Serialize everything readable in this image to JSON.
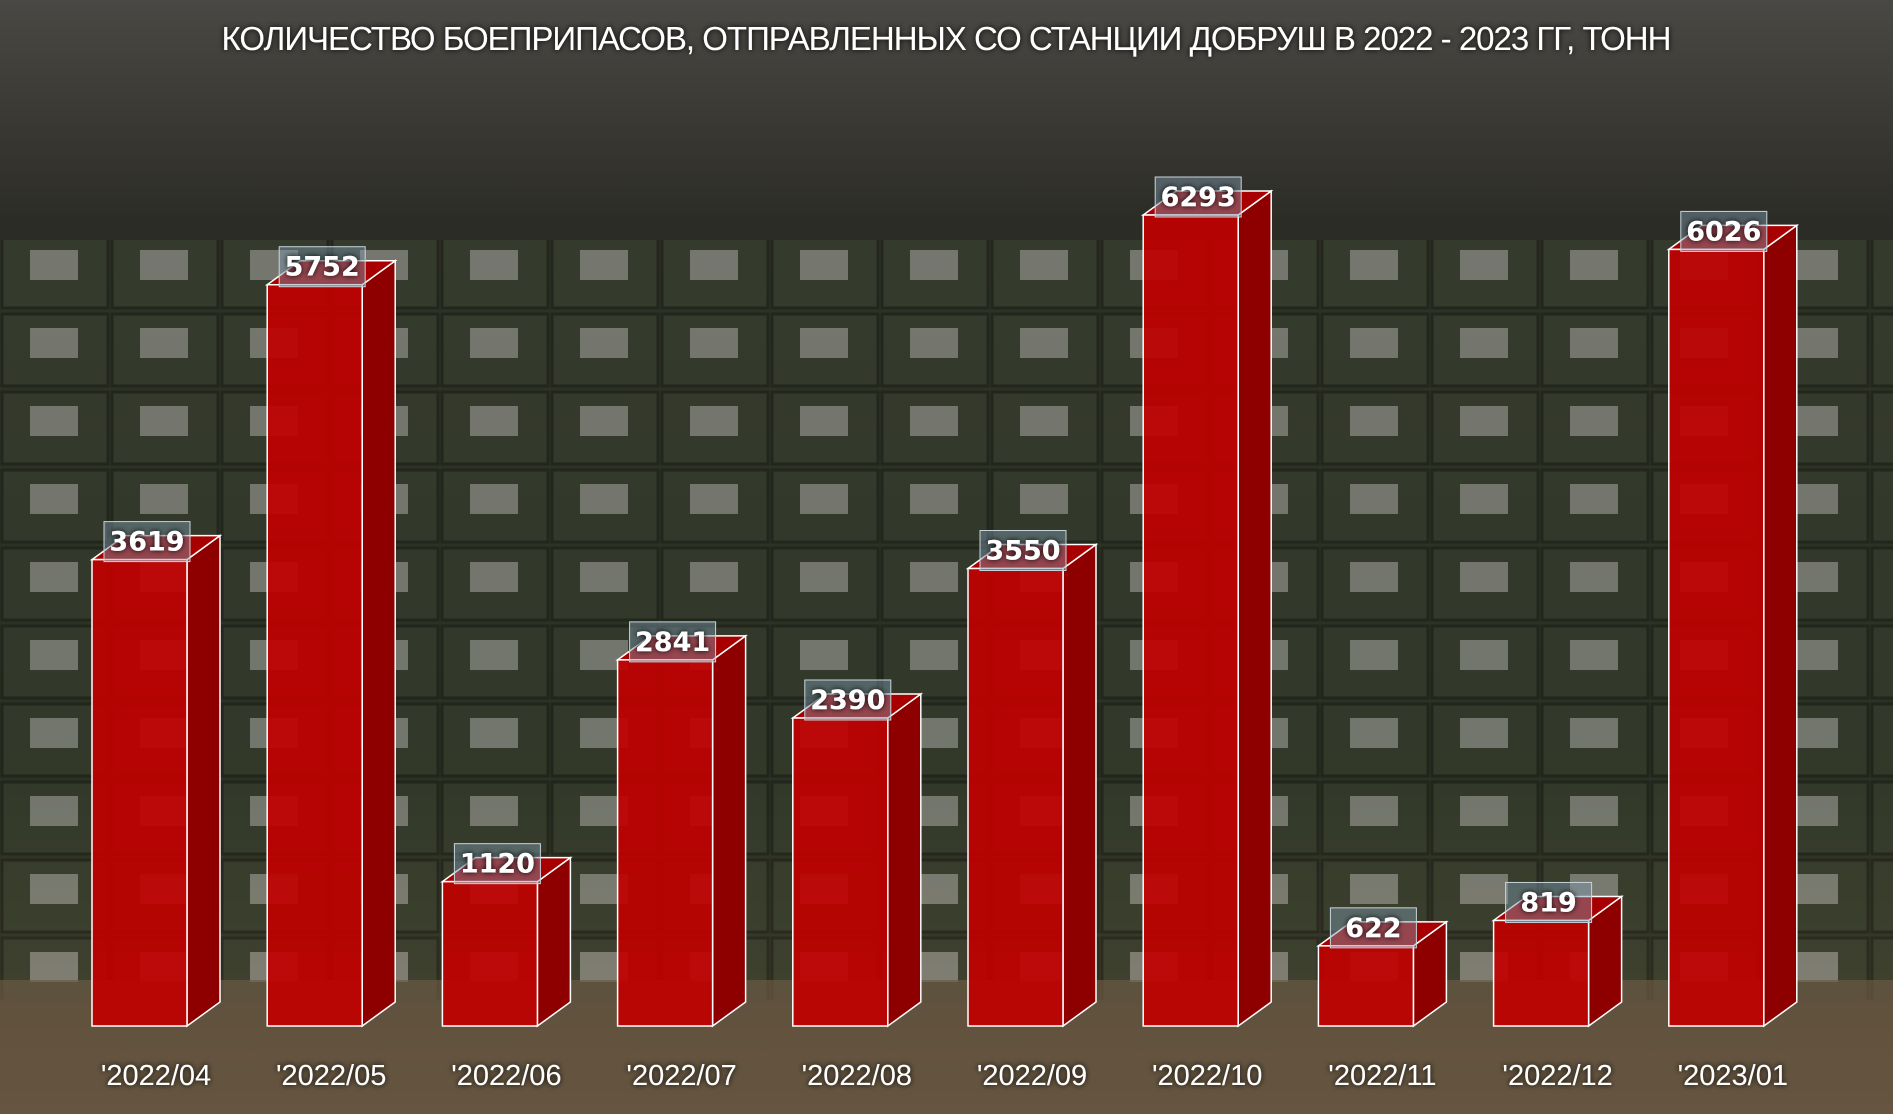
{
  "chart_data": {
    "type": "bar",
    "title": "КОЛИЧЕСТВО БОЕПРИПАСОВ, ОТПРАВЛЕННЫХ СО СТАНЦИИ ДОБРУШ В 2022 - 2023 ГГ, ТОНН",
    "categories": [
      "'2022/04",
      "'2022/05",
      "'2022/06",
      "'2022/07",
      "'2022/08",
      "'2022/09",
      "'2022/10",
      "'2022/11",
      "'2022/12",
      "'2023/01"
    ],
    "values": [
      3619,
      5752,
      1120,
      2841,
      2390,
      3550,
      6293,
      622,
      819,
      6026
    ],
    "data_labels": [
      "3619",
      "5752",
      "1120",
      "2841",
      "2390",
      "3550",
      "6293",
      "622",
      "819",
      "6026"
    ],
    "style": "3d-bar",
    "bar_color": "#c00000",
    "grid": false,
    "legend": "none",
    "background": "photo of ammunition crates in a warehouse"
  }
}
